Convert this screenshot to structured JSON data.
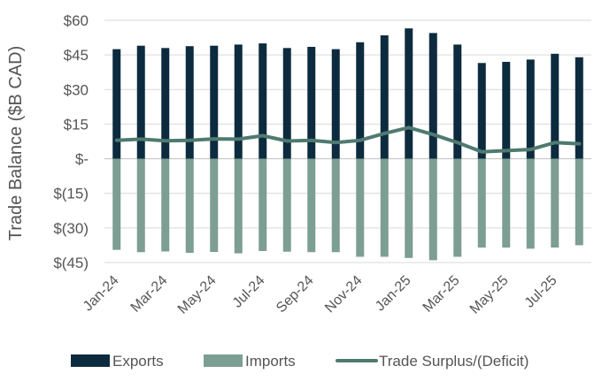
{
  "chart_data": {
    "type": "bar",
    "title": "",
    "xlabel": "",
    "ylabel": "Trade Balance ($B CAD)",
    "ylim": [
      -45,
      60
    ],
    "yticks": [
      60,
      45,
      30,
      15,
      0,
      -15,
      -30,
      -45
    ],
    "ytick_labels": [
      "$60",
      "$45",
      "$30",
      "$15",
      "$-",
      "$(15)",
      "$(30)",
      "$(45)"
    ],
    "categories": [
      "Jan-24",
      "Feb-24",
      "Mar-24",
      "Apr-24",
      "May-24",
      "Jun-24",
      "Jul-24",
      "Aug-24",
      "Sep-24",
      "Oct-24",
      "Nov-24",
      "Dec-24",
      "Jan-25",
      "Feb-25",
      "Mar-25",
      "Apr-25",
      "May-25",
      "Jun-25",
      "Jul-25",
      "Aug-25"
    ],
    "xtick_labels": [
      "Jan-24",
      "",
      "Mar-24",
      "",
      "May-24",
      "",
      "Jul-24",
      "",
      "Sep-24",
      "",
      "Nov-24",
      "",
      "Jan-25",
      "",
      "Mar-25",
      "",
      "May-25",
      "",
      "Jul-25",
      ""
    ],
    "grid": true,
    "legend_position": "bottom",
    "series": [
      {
        "name": "Exports",
        "type": "bar",
        "color": "#0d2b3e",
        "values": [
          47.5,
          49.0,
          48.0,
          48.8,
          49.0,
          49.5,
          50.0,
          48.0,
          48.5,
          47.5,
          50.5,
          53.5,
          56.5,
          54.5,
          49.5,
          41.5,
          42.0,
          43.0,
          45.5,
          44.0
        ]
      },
      {
        "name": "Imports",
        "type": "bar",
        "color": "#7d9e92",
        "values": [
          -39.5,
          -40.5,
          -40.2,
          -40.8,
          -40.4,
          -41.0,
          -40.0,
          -40.3,
          -40.5,
          -40.5,
          -42.5,
          -42.5,
          -43.0,
          -44.0,
          -42.5,
          -38.5,
          -38.5,
          -39.0,
          -38.5,
          -37.5
        ]
      },
      {
        "name": "Trade Surplus/(Deficit)",
        "type": "line",
        "color": "#4f7a70",
        "values": [
          8.0,
          8.5,
          7.8,
          8.0,
          8.6,
          8.5,
          10.0,
          7.7,
          8.0,
          7.0,
          8.0,
          11.0,
          13.5,
          10.5,
          7.0,
          3.0,
          3.5,
          4.0,
          7.0,
          6.5
        ]
      }
    ]
  }
}
